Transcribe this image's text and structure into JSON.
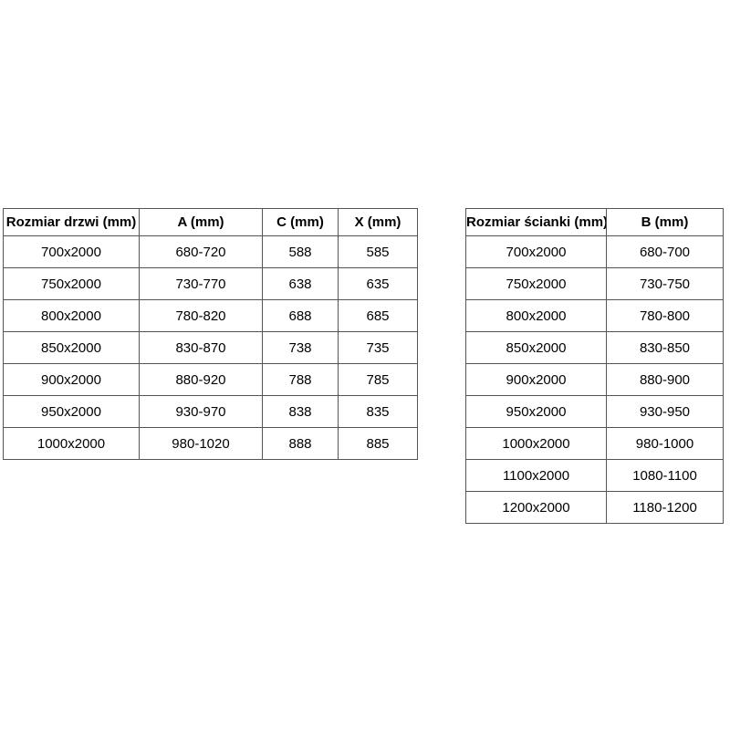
{
  "page": {
    "background_color": "#ffffff",
    "border_color": "#555555",
    "text_color": "#000000"
  },
  "tables": [
    {
      "id": "doors",
      "headers": [
        "Rozmiar drzwi (mm)",
        "A (mm)",
        "C (mm)",
        "X (mm)"
      ],
      "rows": [
        [
          "700x2000",
          "680-720",
          "588",
          "585"
        ],
        [
          "750x2000",
          "730-770",
          "638",
          "635"
        ],
        [
          "800x2000",
          "780-820",
          "688",
          "685"
        ],
        [
          "850x2000",
          "830-870",
          "738",
          "735"
        ],
        [
          "900x2000",
          "880-920",
          "788",
          "785"
        ],
        [
          "950x2000",
          "930-970",
          "838",
          "835"
        ],
        [
          "1000x2000",
          "980-1020",
          "888",
          "885"
        ]
      ]
    },
    {
      "id": "walls",
      "headers": [
        "Rozmiar ścianki (mm)",
        "B (mm)"
      ],
      "rows": [
        [
          "700x2000",
          "680-700"
        ],
        [
          "750x2000",
          "730-750"
        ],
        [
          "800x2000",
          "780-800"
        ],
        [
          "850x2000",
          "830-850"
        ],
        [
          "900x2000",
          "880-900"
        ],
        [
          "950x2000",
          "930-950"
        ],
        [
          "1000x2000",
          "980-1000"
        ],
        [
          "1100x2000",
          "1080-1100"
        ],
        [
          "1200x2000",
          "1180-1200"
        ]
      ]
    }
  ]
}
